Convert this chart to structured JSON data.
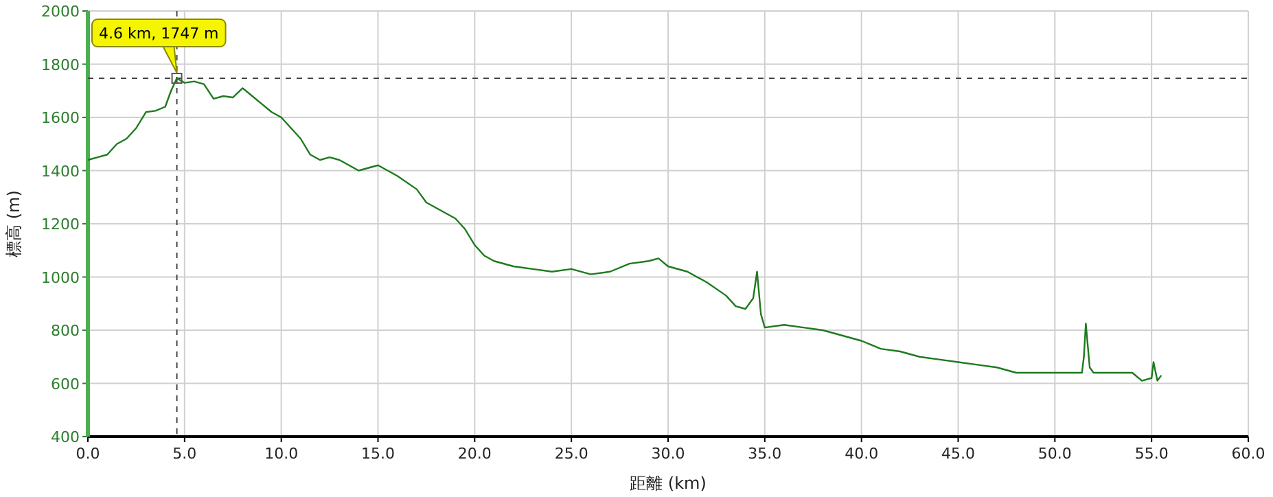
{
  "chart_data": {
    "type": "line",
    "xlabel": "距離 (km)",
    "ylabel": "標高 (m)",
    "xlim": [
      0,
      60
    ],
    "xticks": [
      {
        "value": 0,
        "label": "0.0"
      },
      {
        "value": 5,
        "label": "5.0"
      },
      {
        "value": 10,
        "label": "10.0"
      },
      {
        "value": 15,
        "label": "15.0"
      },
      {
        "value": 20,
        "label": "20.0"
      },
      {
        "value": 25,
        "label": "25.0"
      },
      {
        "value": 30,
        "label": "30.0"
      },
      {
        "value": 35,
        "label": "35.0"
      },
      {
        "value": 40,
        "label": "40.0"
      },
      {
        "value": 45,
        "label": "45.0"
      },
      {
        "value": 50,
        "label": "50.0"
      },
      {
        "value": 55,
        "label": "55.0"
      },
      {
        "value": 60,
        "label": "60.0"
      }
    ],
    "ylim": [
      400,
      2000
    ],
    "yticks": [
      400,
      600,
      800,
      1000,
      1200,
      1400,
      1600,
      1800,
      2000
    ],
    "grid": true,
    "marker": "none",
    "line_style": "solid",
    "series": [
      {
        "color": "#1e7a1e",
        "x": [
          0,
          0.5,
          1.0,
          1.5,
          2.0,
          2.5,
          3.0,
          3.5,
          4.0,
          4.3,
          4.6,
          5.0,
          5.5,
          6.0,
          6.5,
          7.0,
          7.5,
          8.0,
          8.5,
          9.0,
          9.5,
          10.0,
          10.5,
          11.0,
          11.5,
          12.0,
          12.5,
          13.0,
          14.0,
          15.0,
          15.5,
          16.0,
          17.0,
          17.5,
          18.0,
          19.0,
          19.5,
          20.0,
          20.5,
          21.0,
          22.0,
          23.0,
          24.0,
          25.0,
          26.0,
          27.0,
          28.0,
          29.0,
          29.5,
          30.0,
          31.0,
          32.0,
          33.0,
          33.5,
          34.0,
          34.4,
          34.6,
          34.8,
          35.0,
          36.0,
          37.0,
          38.0,
          39.0,
          40.0,
          41.0,
          42.0,
          43.0,
          44.0,
          45.0,
          46.0,
          47.0,
          48.0,
          49.0,
          50.0,
          51.4,
          51.5,
          51.6,
          51.8,
          52.0,
          53.0,
          54.0,
          54.5,
          55.0,
          55.1,
          55.3,
          55.5
        ],
        "values": [
          1440,
          1450,
          1460,
          1500,
          1520,
          1560,
          1620,
          1625,
          1640,
          1700,
          1747,
          1730,
          1735,
          1725,
          1670,
          1680,
          1675,
          1710,
          1680,
          1650,
          1620,
          1600,
          1560,
          1520,
          1460,
          1440,
          1450,
          1440,
          1400,
          1420,
          1400,
          1380,
          1330,
          1280,
          1260,
          1220,
          1180,
          1120,
          1080,
          1060,
          1040,
          1030,
          1020,
          1030,
          1010,
          1020,
          1050,
          1060,
          1070,
          1040,
          1020,
          980,
          930,
          890,
          880,
          920,
          1020,
          860,
          810,
          820,
          810,
          800,
          780,
          760,
          730,
          720,
          700,
          690,
          680,
          670,
          660,
          640,
          640,
          640,
          640,
          700,
          825,
          660,
          640,
          640,
          640,
          610,
          620,
          680,
          610,
          630
        ]
      }
    ],
    "ref_lines": [
      {
        "axis": "x",
        "value": 4.6,
        "color": "#444444",
        "line_style": "dashed"
      },
      {
        "axis": "y",
        "value": 1747,
        "color": "#444444",
        "line_style": "dashed"
      }
    ],
    "annotations": [
      {
        "text": "4.6 km, 1747 m",
        "x": 4.6,
        "y": 1747
      }
    ]
  }
}
